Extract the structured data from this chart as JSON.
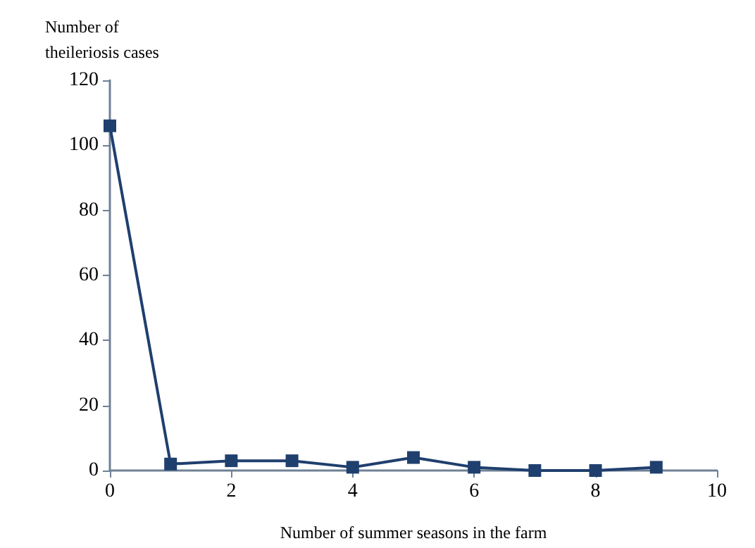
{
  "chart_data": {
    "type": "line",
    "xlabel": "Number of summer seasons in the farm",
    "ylabel": "Number of theileriosis cases",
    "x": [
      0,
      1,
      2,
      3,
      4,
      5,
      6,
      7,
      8,
      9
    ],
    "series": [
      {
        "color": "#1f3f6e",
        "values": [
          106,
          2,
          3,
          3,
          1,
          4,
          1,
          0,
          0,
          1
        ]
      }
    ],
    "xlim": [
      0,
      10
    ],
    "xticks": [
      0,
      2,
      4,
      6,
      8,
      10
    ],
    "ylim": [
      0,
      120
    ],
    "yticks": [
      0,
      20,
      40,
      60,
      80,
      100,
      120
    ],
    "grid": false,
    "marker": "square",
    "line_style": "solid"
  }
}
